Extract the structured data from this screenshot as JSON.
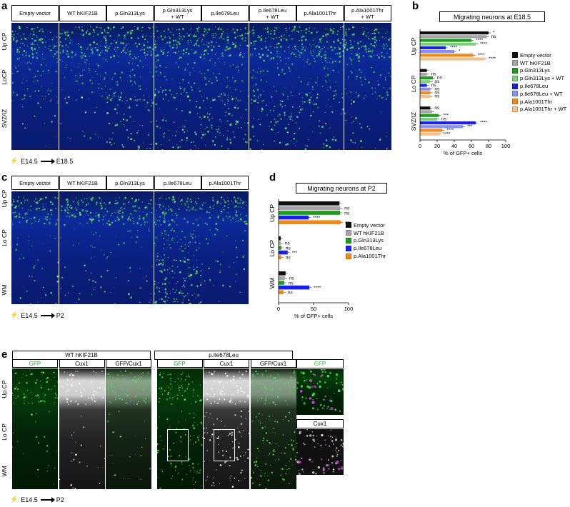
{
  "panel_labels": {
    "a": "a",
    "b": "b",
    "c": "c",
    "d": "d",
    "e": "e"
  },
  "panel_a": {
    "headers": [
      "Empty vector",
      "WT hKIF21B",
      "p.Gln313Lys",
      "p.Gln313Lys\n+ WT",
      "p.Ile678Leu",
      "p.Ile678Leu\n+ WT",
      "p.Ala1001Thr",
      "p.Ala1001Thr\n+ WT"
    ],
    "regions": [
      "Up CP",
      "LoCP",
      "SVZ/IZ"
    ],
    "timeline_start": "E14.5",
    "timeline_end": "E18.5"
  },
  "panel_c": {
    "headers": [
      "Empty vector",
      "WT hKIF21B",
      "p.Gln313Lys",
      "p.Ile678Leu",
      "p.Ala1001Thr"
    ],
    "regions": [
      "Up CP",
      "Lo CP",
      "WM"
    ],
    "timeline_start": "E14.5",
    "timeline_end": "P2"
  },
  "panel_e": {
    "groups": [
      "WT hKIF21B",
      "p.Ile678Leu"
    ],
    "subheaders": [
      "GFP",
      "Cux1",
      "GFP/Cux1"
    ],
    "inset_labels": [
      "GFP",
      "Cux1"
    ],
    "regions": [
      "Up CP",
      "Lo CP",
      "WM"
    ],
    "timeline_start": "E14.5",
    "timeline_end": "P2"
  },
  "colors": {
    "empty_vector": "#111111",
    "wt": "#a6a6a6",
    "gln313lys": "#1e9a1e",
    "gln313lys_wt": "#7fcf7f",
    "ile678leu": "#1a22e6",
    "ile678leu_wt": "#8a90f2",
    "ala1001thr": "#f28a1a",
    "ala1001thr_wt": "#f7c08a",
    "gfp": "#46e046",
    "cux1_marker": "#e040e0"
  },
  "chart_data": [
    {
      "type": "bar",
      "orientation": "horizontal",
      "title": "Migrating neurons at E18.5",
      "xlabel": "% of GFP+ cells",
      "xlim": [
        0,
        100
      ],
      "xticks": [
        0,
        20,
        40,
        60,
        80,
        100
      ],
      "categories": [
        "Up CP",
        "Lo CP",
        "SVZ/IZ"
      ],
      "series": [
        {
          "name": "Empty vector",
          "values": [
            80,
            8,
            12
          ]
        },
        {
          "name": "WT hKIF21B",
          "values": [
            78,
            8,
            14
          ]
        },
        {
          "name": "p.Gln313Lys",
          "values": [
            60,
            15,
            22
          ]
        },
        {
          "name": "p.Gln313Lys + WT",
          "values": [
            65,
            12,
            20
          ]
        },
        {
          "name": "p.Ile678Leu",
          "values": [
            30,
            8,
            65
          ]
        },
        {
          "name": "p.Ile678Leu + WT",
          "values": [
            40,
            12,
            50
          ]
        },
        {
          "name": "p.Ala1001Thr",
          "values": [
            62,
            12,
            26
          ]
        },
        {
          "name": "p.Ala1001Thr + WT",
          "values": [
            75,
            12,
            22
          ]
        }
      ],
      "annotations": {
        "Up CP": [
          "*",
          "ns",
          "****",
          "****",
          "****",
          "*",
          "****",
          "****"
        ],
        "Lo CP": [
          "",
          "ns",
          "ns",
          "ns",
          "ns",
          "ns",
          "ns",
          "ns"
        ],
        "SVZ/IZ": [
          "ns",
          "",
          "***",
          "ns",
          "****",
          "***",
          "****",
          "****"
        ]
      },
      "bracket_labels": [
        "ns",
        "*",
        "ns",
        "ns",
        "ns",
        "ns",
        "ns",
        "***",
        "ns"
      ]
    },
    {
      "type": "bar",
      "orientation": "horizontal",
      "title": "Migrating neurons at P2",
      "xlabel": "% of GFP+ cells",
      "xlim": [
        0,
        100
      ],
      "xticks": [
        0,
        50,
        100
      ],
      "categories": [
        "Up CP",
        "Lo CP",
        "WM"
      ],
      "series": [
        {
          "name": "Empty vector",
          "values": [
            87,
            3,
            10
          ]
        },
        {
          "name": "WT hKIF21B",
          "values": [
            88,
            3,
            9
          ]
        },
        {
          "name": "p.Gln313Lys",
          "values": [
            88,
            4,
            8
          ]
        },
        {
          "name": "p.Ile678Leu",
          "values": [
            43,
            13,
            44
          ]
        },
        {
          "name": "p.Ala1001Thr",
          "values": [
            89,
            4,
            7
          ]
        }
      ],
      "annotations": {
        "Up CP": [
          "",
          "ns",
          "ns",
          "****",
          "ns"
        ],
        "Lo CP": [
          "",
          "ns",
          "ns",
          "***",
          "ns"
        ],
        "WM": [
          "",
          "ns",
          "ns",
          "****",
          "ns"
        ]
      }
    }
  ]
}
